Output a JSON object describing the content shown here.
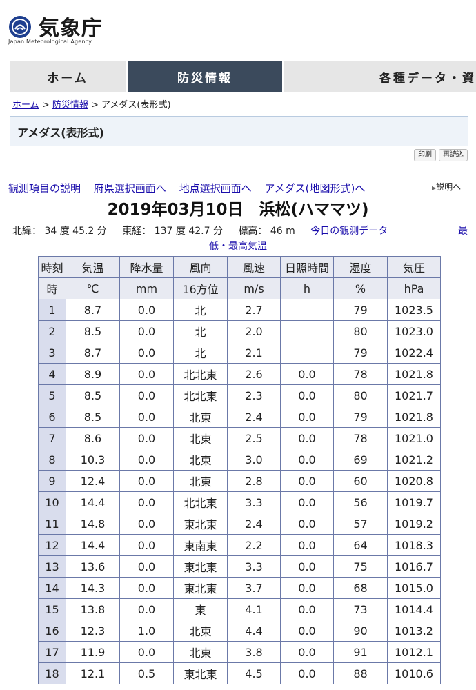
{
  "header": {
    "agency_name": "気象庁",
    "agency_name_en": "Japan Meteorological Agency"
  },
  "nav": {
    "tabs": [
      {
        "label": "ホーム",
        "active": false
      },
      {
        "label": "防災情報",
        "active": true
      },
      {
        "label": "各種データ・資",
        "active": false
      }
    ]
  },
  "breadcrumb": {
    "home": "ホーム",
    "bousai": "防災情報",
    "current": "アメダス(表形式)",
    "separator": ">"
  },
  "page_title": "アメダス(表形式)",
  "tools": {
    "print_label": "印刷",
    "reload_label": "再読込"
  },
  "links": {
    "items": [
      "観測項目の説明",
      "府県選択画面へ",
      "地点選択画面へ",
      "アメダス(地図形式)へ"
    ],
    "explain": "説明へ"
  },
  "station": {
    "title": "2019年03月10日　浜松(ハママツ)",
    "lat": "北緯： 34 度 45.2 分",
    "lon": "東経： 137 度 42.7 分",
    "alt": "標高： 46 m",
    "today_link": "今日の観測データ",
    "minmax_link_part1": "最",
    "minmax_link_part2": "低・最高気温"
  },
  "table": {
    "headers": [
      "時刻",
      "気温",
      "降水量",
      "風向",
      "風速",
      "日照時間",
      "湿度",
      "気圧"
    ],
    "units": [
      "時",
      "℃",
      "mm",
      "16方位",
      "m/s",
      "h",
      "%",
      "hPa"
    ],
    "rows": [
      [
        "1",
        "8.7",
        "0.0",
        "北",
        "2.7",
        "",
        "79",
        "1023.5"
      ],
      [
        "2",
        "8.5",
        "0.0",
        "北",
        "2.0",
        "",
        "80",
        "1023.0"
      ],
      [
        "3",
        "8.7",
        "0.0",
        "北",
        "2.1",
        "",
        "79",
        "1022.4"
      ],
      [
        "4",
        "8.9",
        "0.0",
        "北北東",
        "2.6",
        "0.0",
        "78",
        "1021.8"
      ],
      [
        "5",
        "8.5",
        "0.0",
        "北北東",
        "2.3",
        "0.0",
        "80",
        "1021.7"
      ],
      [
        "6",
        "8.5",
        "0.0",
        "北東",
        "2.4",
        "0.0",
        "79",
        "1021.8"
      ],
      [
        "7",
        "8.6",
        "0.0",
        "北東",
        "2.5",
        "0.0",
        "78",
        "1021.0"
      ],
      [
        "8",
        "10.3",
        "0.0",
        "北東",
        "3.0",
        "0.0",
        "69",
        "1021.2"
      ],
      [
        "9",
        "12.4",
        "0.0",
        "北東",
        "2.8",
        "0.0",
        "60",
        "1020.8"
      ],
      [
        "10",
        "14.4",
        "0.0",
        "北北東",
        "3.3",
        "0.0",
        "56",
        "1019.7"
      ],
      [
        "11",
        "14.8",
        "0.0",
        "東北東",
        "2.4",
        "0.0",
        "57",
        "1019.2"
      ],
      [
        "12",
        "14.4",
        "0.0",
        "東南東",
        "2.2",
        "0.0",
        "64",
        "1018.3"
      ],
      [
        "13",
        "13.6",
        "0.0",
        "東北東",
        "3.3",
        "0.0",
        "75",
        "1016.7"
      ],
      [
        "14",
        "14.3",
        "0.0",
        "東北東",
        "3.7",
        "0.0",
        "68",
        "1015.0"
      ],
      [
        "15",
        "13.8",
        "0.0",
        "東",
        "4.1",
        "0.0",
        "73",
        "1014.4"
      ],
      [
        "16",
        "12.3",
        "1.0",
        "北東",
        "4.4",
        "0.0",
        "90",
        "1013.2"
      ],
      [
        "17",
        "11.9",
        "0.0",
        "北東",
        "3.8",
        "0.0",
        "91",
        "1012.1"
      ],
      [
        "18",
        "12.1",
        "0.5",
        "東北東",
        "4.5",
        "0.0",
        "88",
        "1010.6"
      ]
    ]
  },
  "colors": {
    "nav_active": "#3b4a5c",
    "link": "#1a0dab",
    "table_border": "#6b79a8",
    "hour_cell": "#d9dded"
  }
}
